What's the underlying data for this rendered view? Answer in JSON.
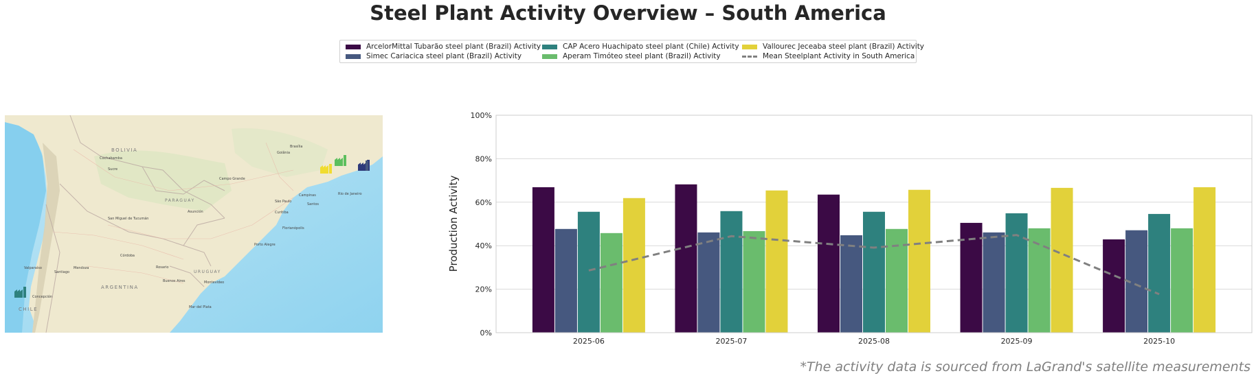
{
  "title": "Steel Plant Activity Overview – South America",
  "footnote": "*The activity data is sourced from LaGrand's satellite measurements",
  "legend": {
    "items": [
      {
        "label": "ArcelorMittal Tubarão steel plant (Brazil) Activity",
        "color": "#3b0a45",
        "kind": "bar"
      },
      {
        "label": "Simec Cariacica steel plant (Brazil) Activity",
        "color": "#46587f",
        "kind": "bar"
      },
      {
        "label": "CAP Acero Huachipato steel plant (Chile) Activity",
        "color": "#2e817e",
        "kind": "bar"
      },
      {
        "label": "Aperam Timóteo steel plant (Brazil) Activity",
        "color": "#6abc6d",
        "kind": "bar"
      },
      {
        "label": "Vallourec Jeceaba steel plant (Brazil) Activity",
        "color": "#e2d13a",
        "kind": "bar"
      },
      {
        "label": "Mean Steelplant Activity in South America",
        "color": "#808080",
        "kind": "dashed-line"
      }
    ]
  },
  "map": {
    "labels": {
      "countries": [
        "BOLIVIA",
        "PARAGUAY",
        "URUGUAY",
        "ARGENTINA",
        "CHILE"
      ],
      "cities": [
        "Brasília",
        "Goiânia",
        "Cochabamba",
        "Sucre",
        "Campo Grande",
        "Campinas",
        "São Paulo",
        "Santos",
        "Rio de Janeiro",
        "Curitiba",
        "Asunción",
        "San Miguel de Tucumán",
        "Florianópolis",
        "Porto Alegre",
        "Córdoba",
        "Rosario",
        "Valparaíso",
        "Santiago",
        "Mendoza",
        "Buenos Aires",
        "Montevideo",
        "Mar del Plata",
        "Concepción",
        "Belo Horizonte",
        "Vitória"
      ]
    },
    "markers": [
      {
        "plant": "ArcelorMittal Tubarão",
        "color": "#2e3a7a"
      },
      {
        "plant": "Simec Cariacica",
        "color": "#46587f"
      },
      {
        "plant": "CAP Acero Huachipato",
        "color": "#2e817e"
      },
      {
        "plant": "Aperam Timóteo",
        "color": "#5cbf5e"
      },
      {
        "plant": "Vallourec Jeceaba",
        "color": "#f0dc30"
      }
    ]
  },
  "chart_data": {
    "type": "bar",
    "title": "",
    "xlabel": "",
    "ylabel": "Production Activity",
    "ylim": [
      0,
      100
    ],
    "yticks": [
      "0%",
      "20%",
      "40%",
      "60%",
      "80%",
      "100%"
    ],
    "categories": [
      "2025-06",
      "2025-07",
      "2025-08",
      "2025-09",
      "2025-10"
    ],
    "grid": "horizontal",
    "legend_position": "top-center",
    "series": [
      {
        "name": "ArcelorMittal Tubarão steel plant (Brazil) Activity",
        "color": "#3b0a45",
        "values": [
          66.9,
          68.2,
          63.5,
          50.5,
          42.9
        ]
      },
      {
        "name": "Simec Cariacica steel plant (Brazil) Activity",
        "color": "#46587f",
        "values": [
          47.7,
          46.1,
          44.8,
          46.1,
          47.1
        ]
      },
      {
        "name": "CAP Acero Huachipato steel plant (Chile) Activity",
        "color": "#2e817e",
        "values": [
          55.6,
          55.9,
          55.6,
          54.9,
          54.6
        ]
      },
      {
        "name": "Aperam Timóteo steel plant (Brazil) Activity",
        "color": "#6abc6d",
        "values": [
          45.8,
          46.7,
          47.7,
          48.0,
          48.0
        ]
      },
      {
        "name": "Vallourec Jeceaba steel plant (Brazil) Activity",
        "color": "#e2d13a",
        "values": [
          61.9,
          65.4,
          65.7,
          66.6,
          66.9
        ]
      }
    ],
    "line": {
      "name": "Mean Steelplant Activity in South America",
      "color": "#808080",
      "style": "dashed",
      "values": [
        28.6,
        44.4,
        39.1,
        44.9,
        17.7
      ]
    }
  }
}
